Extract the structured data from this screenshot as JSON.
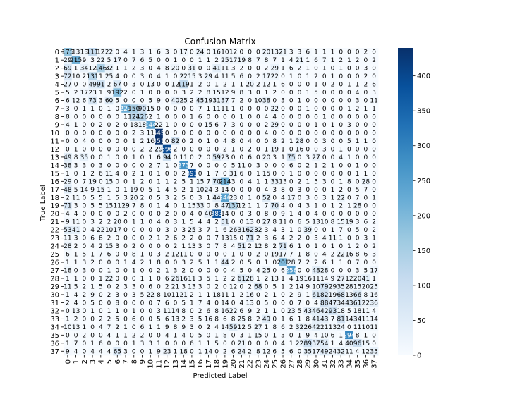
{
  "chart_data": {
    "type": "heatmap",
    "title": "Confusion Matrix",
    "xlabel": "Predicted Label",
    "ylabel": "True Label",
    "x_categories": [
      "0",
      "1",
      "2",
      "3",
      "4",
      "5",
      "6",
      "7",
      "8",
      "9",
      "10",
      "11",
      "12",
      "13",
      "14",
      "15",
      "16",
      "17",
      "18",
      "19",
      "20",
      "21",
      "22",
      "23",
      "24",
      "25",
      "26",
      "27",
      "28",
      "29",
      "30",
      "31",
      "32",
      "33",
      "34",
      "35",
      "36",
      "37"
    ],
    "y_categories": [
      "0",
      "1",
      "2",
      "3",
      "4",
      "5",
      "6",
      "7",
      "8",
      "9",
      "10",
      "11",
      "12",
      "13",
      "14",
      "15",
      "16",
      "17",
      "18",
      "19",
      "20",
      "21",
      "22",
      "23",
      "24",
      "25",
      "26",
      "27",
      "28",
      "29",
      "30",
      "31",
      "32",
      "33",
      "34",
      "35",
      "36",
      "37"
    ],
    "colormap": "Blues",
    "colorbar": {
      "min": 0,
      "max": 440,
      "ticks": [
        0,
        50,
        100,
        150,
        200,
        250,
        300,
        350,
        400
      ]
    },
    "values": [
      [
        175,
        13,
        13,
        111,
        12,
        22,
        0,
        4,
        1,
        3,
        1,
        6,
        3,
        0,
        17,
        0,
        24,
        0,
        16,
        10,
        12,
        0,
        0,
        0,
        20,
        13,
        21,
        3,
        3,
        6,
        1,
        1,
        1,
        0,
        0,
        0,
        2,
        0
      ],
      [
        29,
        215,
        9,
        3,
        22,
        5,
        17,
        0,
        7,
        6,
        5,
        0,
        0,
        1,
        0,
        0,
        1,
        1,
        2,
        25,
        17,
        19,
        8,
        7,
        8,
        7,
        1,
        4,
        21,
        1,
        6,
        7,
        1,
        2,
        1,
        2,
        0,
        2
      ],
      [
        69,
        1,
        34,
        12,
        146,
        32,
        1,
        1,
        2,
        3,
        0,
        4,
        8,
        20,
        0,
        31,
        0,
        0,
        41,
        11,
        3,
        2,
        0,
        0,
        2,
        29,
        1,
        6,
        2,
        1,
        0,
        1,
        0,
        1,
        0,
        0,
        3,
        0
      ],
      [
        72,
        10,
        2,
        131,
        1,
        25,
        4,
        0,
        0,
        3,
        0,
        4,
        1,
        0,
        22,
        15,
        3,
        29,
        4,
        11,
        5,
        6,
        0,
        2,
        17,
        22,
        0,
        1,
        0,
        1,
        2,
        0,
        1,
        0,
        0,
        0,
        2,
        0
      ],
      [
        27,
        0,
        0,
        49,
        91,
        2,
        67,
        0,
        3,
        0,
        13,
        0,
        0,
        12,
        119,
        1,
        2,
        0,
        1,
        2,
        1,
        1,
        20,
        2,
        12,
        1,
        6,
        0,
        0,
        0,
        1,
        0,
        2,
        0,
        1,
        1,
        2,
        6
      ],
      [
        5,
        2,
        17,
        23,
        1,
        9,
        192,
        2,
        0,
        1,
        0,
        0,
        0,
        0,
        3,
        2,
        2,
        8,
        15,
        12,
        9,
        8,
        3,
        0,
        1,
        2,
        0,
        0,
        0,
        1,
        5,
        0,
        0,
        0,
        0,
        4,
        0,
        3
      ],
      [
        6,
        12,
        6,
        73,
        3,
        60,
        5,
        0,
        0,
        0,
        5,
        9,
        0,
        40,
        25,
        2,
        45,
        19,
        31,
        37,
        7,
        2,
        0,
        10,
        38,
        0,
        3,
        0,
        1,
        0,
        0,
        0,
        0,
        0,
        0,
        3,
        0,
        11
      ],
      [
        3,
        0,
        1,
        1,
        0,
        1,
        0,
        222,
        150,
        90,
        15,
        0,
        0,
        0,
        0,
        0,
        7,
        1,
        11,
        11,
        1,
        0,
        0,
        0,
        0,
        22,
        0,
        0,
        0,
        1,
        0,
        0,
        0,
        0,
        1,
        2,
        1,
        1
      ],
      [
        8,
        0,
        0,
        0,
        0,
        0,
        0,
        1,
        124,
        126,
        2,
        1,
        0,
        0,
        0,
        1,
        6,
        0,
        0,
        0,
        0,
        1,
        0,
        0,
        4,
        4,
        0,
        0,
        0,
        0,
        0,
        1,
        0,
        0,
        0,
        0,
        0,
        0
      ],
      [
        4,
        1,
        0,
        0,
        2,
        0,
        2,
        0,
        18,
        18,
        244,
        22,
        1,
        0,
        0,
        0,
        0,
        15,
        6,
        7,
        3,
        0,
        0,
        0,
        2,
        29,
        0,
        0,
        0,
        0,
        1,
        0,
        1,
        0,
        3,
        0,
        0,
        0
      ],
      [
        0,
        0,
        0,
        0,
        0,
        0,
        0,
        0,
        2,
        3,
        11,
        445,
        0,
        0,
        0,
        0,
        0,
        0,
        0,
        0,
        0,
        0,
        0,
        0,
        4,
        0,
        0,
        0,
        0,
        0,
        0,
        0,
        0,
        0,
        0,
        0,
        0,
        0
      ],
      [
        0,
        0,
        4,
        0,
        0,
        0,
        0,
        0,
        1,
        2,
        16,
        451,
        0,
        82,
        0,
        2,
        0,
        1,
        0,
        4,
        8,
        0,
        4,
        0,
        0,
        8,
        2,
        1,
        28,
        0,
        0,
        3,
        0,
        0,
        5,
        1,
        1,
        0
      ],
      [
        0,
        1,
        0,
        0,
        0,
        0,
        0,
        0,
        0,
        2,
        2,
        29,
        396,
        2,
        0,
        0,
        0,
        0,
        0,
        2,
        1,
        0,
        2,
        0,
        1,
        19,
        1,
        0,
        16,
        0,
        0,
        3,
        0,
        1,
        0,
        0,
        0,
        0
      ],
      [
        49,
        8,
        35,
        0,
        0,
        1,
        0,
        0,
        1,
        0,
        1,
        6,
        94,
        0,
        11,
        0,
        2,
        0,
        59,
        23,
        0,
        0,
        6,
        0,
        20,
        3,
        1,
        75,
        0,
        3,
        27,
        0,
        0,
        4,
        1,
        0,
        0,
        0
      ],
      [
        38,
        3,
        3,
        0,
        3,
        0,
        0,
        0,
        0,
        0,
        2,
        7,
        1,
        0,
        273,
        7,
        0,
        0,
        0,
        0,
        5,
        11,
        0,
        3,
        0,
        0,
        0,
        6,
        0,
        2,
        1,
        2,
        1,
        0,
        0,
        1,
        0,
        0
      ],
      [
        1,
        0,
        1,
        2,
        6,
        11,
        4,
        0,
        2,
        1,
        0,
        1,
        0,
        0,
        2,
        393,
        0,
        1,
        7,
        0,
        31,
        6,
        0,
        1,
        15,
        0,
        0,
        1,
        0,
        0,
        0,
        0,
        0,
        0,
        0,
        1,
        1,
        0
      ],
      [
        29,
        0,
        7,
        19,
        0,
        15,
        0,
        0,
        1,
        2,
        0,
        1,
        1,
        2,
        5,
        1,
        15,
        7,
        70,
        214,
        3,
        0,
        4,
        1,
        1,
        33,
        13,
        0,
        2,
        1,
        5,
        3,
        0,
        1,
        8,
        0,
        28,
        0
      ],
      [
        48,
        5,
        14,
        9,
        15,
        1,
        0,
        1,
        19,
        0,
        5,
        1,
        4,
        5,
        2,
        1,
        10,
        24,
        3,
        14,
        0,
        0,
        0,
        0,
        4,
        3,
        8,
        0,
        3,
        0,
        0,
        0,
        1,
        2,
        0,
        5,
        7,
        0
      ],
      [
        2,
        11,
        0,
        5,
        5,
        1,
        5,
        3,
        20,
        2,
        0,
        5,
        3,
        2,
        5,
        0,
        3,
        1,
        44,
        246,
        23,
        0,
        1,
        0,
        52,
        0,
        4,
        17,
        0,
        3,
        0,
        3,
        1,
        22,
        0,
        7,
        0,
        1
      ],
      [
        71,
        3,
        0,
        5,
        5,
        15,
        11,
        29,
        7,
        8,
        0,
        1,
        4,
        0,
        1,
        15,
        33,
        0,
        8,
        47,
        137,
        12,
        1,
        1,
        7,
        70,
        4,
        0,
        4,
        3,
        1,
        0,
        1,
        2,
        1,
        28,
        0,
        0
      ],
      [
        4,
        4,
        0,
        0,
        0,
        0,
        0,
        2,
        0,
        0,
        0,
        0,
        2,
        0,
        0,
        4,
        0,
        40,
        383,
        14,
        0,
        0,
        3,
        0,
        8,
        0,
        9,
        1,
        4,
        0,
        4,
        0,
        0,
        0,
        0,
        0,
        0,
        0
      ],
      [
        9,
        11,
        0,
        3,
        2,
        2,
        20,
        0,
        1,
        1,
        0,
        4,
        0,
        3,
        1,
        5,
        4,
        4,
        2,
        51,
        0,
        0,
        13,
        0,
        27,
        8,
        11,
        0,
        6,
        5,
        13,
        10,
        8,
        15,
        19,
        3,
        6,
        2
      ],
      [
        53,
        41,
        0,
        4,
        22,
        10,
        17,
        0,
        0,
        0,
        0,
        0,
        3,
        0,
        3,
        25,
        3,
        7,
        1,
        6,
        26,
        31,
        62,
        32,
        3,
        4,
        3,
        1,
        0,
        39,
        0,
        0,
        1,
        7,
        0,
        5,
        0,
        2
      ],
      [
        11,
        3,
        0,
        6,
        8,
        2,
        0,
        0,
        0,
        0,
        2,
        1,
        2,
        6,
        2,
        2,
        0,
        0,
        7,
        13,
        15,
        0,
        71,
        2,
        3,
        6,
        4,
        2,
        2,
        0,
        3,
        4,
        11,
        1,
        0,
        0,
        3,
        1
      ],
      [
        28,
        2,
        0,
        4,
        2,
        15,
        3,
        0,
        2,
        0,
        0,
        0,
        0,
        2,
        1,
        13,
        3,
        0,
        7,
        8,
        4,
        51,
        2,
        12,
        8,
        2,
        71,
        6,
        1,
        0,
        1,
        0,
        1,
        0,
        1,
        2,
        0,
        2
      ],
      [
        6,
        1,
        5,
        1,
        7,
        6,
        0,
        0,
        8,
        1,
        0,
        3,
        2,
        12,
        11,
        0,
        0,
        0,
        0,
        0,
        1,
        0,
        0,
        2,
        0,
        19,
        17,
        7,
        1,
        8,
        0,
        4,
        2,
        22,
        16,
        8,
        6,
        3
      ],
      [
        1,
        1,
        3,
        2,
        0,
        0,
        0,
        1,
        4,
        2,
        1,
        8,
        0,
        0,
        3,
        2,
        5,
        1,
        1,
        44,
        2,
        0,
        5,
        0,
        1,
        0,
        201,
        28,
        7,
        2,
        2,
        6,
        1,
        1,
        0,
        7,
        0,
        0
      ],
      [
        18,
        0,
        3,
        0,
        0,
        1,
        0,
        0,
        1,
        0,
        0,
        2,
        1,
        3,
        2,
        0,
        0,
        0,
        0,
        0,
        4,
        5,
        0,
        4,
        25,
        0,
        6,
        256,
        0,
        0,
        48,
        28,
        0,
        0,
        0,
        3,
        5,
        17
      ],
      [
        1,
        1,
        0,
        0,
        1,
        22,
        0,
        0,
        0,
        1,
        1,
        0,
        6,
        26,
        16,
        11,
        3,
        5,
        1,
        2,
        2,
        61,
        28,
        1,
        2,
        13,
        1,
        4,
        19,
        16,
        11,
        14,
        9,
        27,
        12,
        20,
        41,
        1
      ],
      [
        11,
        5,
        2,
        1,
        5,
        0,
        2,
        3,
        3,
        0,
        6,
        0,
        2,
        21,
        3,
        13,
        3,
        0,
        2,
        0,
        12,
        0,
        2,
        68,
        0,
        5,
        1,
        2,
        14,
        9,
        10,
        79,
        29,
        35,
        28,
        15,
        20,
        25
      ],
      [
        1,
        4,
        2,
        9,
        0,
        2,
        3,
        0,
        3,
        5,
        22,
        8,
        10,
        11,
        21,
        2,
        1,
        1,
        18,
        11,
        1,
        2,
        16,
        0,
        2,
        1,
        0,
        2,
        9,
        1,
        61,
        82,
        19,
        68,
        13,
        66,
        8,
        16
      ],
      [
        2,
        4,
        0,
        5,
        0,
        0,
        8,
        0,
        0,
        0,
        0,
        7,
        6,
        0,
        5,
        1,
        7,
        4,
        0,
        14,
        0,
        4,
        13,
        0,
        5,
        0,
        0,
        0,
        7,
        0,
        4,
        88,
        47,
        34,
        43,
        61,
        22,
        36
      ],
      [
        0,
        13,
        0,
        1,
        0,
        1,
        1,
        0,
        1,
        0,
        0,
        3,
        11,
        14,
        8,
        0,
        2,
        6,
        8,
        16,
        22,
        6,
        9,
        2,
        1,
        1,
        0,
        23,
        5,
        43,
        46,
        42,
        93,
        18,
        5,
        18,
        11,
        4
      ],
      [
        1,
        2,
        0,
        0,
        2,
        2,
        5,
        0,
        6,
        0,
        0,
        5,
        6,
        13,
        2,
        3,
        5,
        16,
        8,
        6,
        8,
        25,
        8,
        2,
        49,
        0,
        1,
        6,
        1,
        8,
        41,
        43,
        7,
        81,
        14,
        34,
        11,
        14
      ],
      [
        10,
        13,
        1,
        0,
        4,
        7,
        2,
        1,
        0,
        6,
        1,
        1,
        9,
        8,
        9,
        3,
        0,
        2,
        4,
        14,
        59,
        12,
        5,
        27,
        1,
        8,
        6,
        2,
        32,
        26,
        42,
        21,
        13,
        24,
        0,
        11,
        10,
        11
      ],
      [
        0,
        0,
        2,
        0,
        0,
        4,
        1,
        1,
        2,
        2,
        0,
        0,
        4,
        1,
        4,
        0,
        5,
        0,
        1,
        8,
        0,
        3,
        1,
        15,
        0,
        1,
        3,
        0,
        1,
        9,
        4,
        10,
        6,
        1,
        294,
        8,
        1,
        0
      ],
      [
        1,
        7,
        0,
        1,
        6,
        0,
        0,
        0,
        1,
        3,
        3,
        1,
        0,
        0,
        0,
        6,
        1,
        1,
        5,
        0,
        0,
        21,
        0,
        0,
        0,
        0,
        4,
        1,
        22,
        89,
        37,
        54,
        1,
        4,
        40,
        96,
        15,
        0
      ],
      [
        9,
        4,
        0,
        4,
        4,
        4,
        65,
        3,
        0,
        0,
        1,
        9,
        23,
        1,
        18,
        0,
        1,
        14,
        0,
        2,
        6,
        24,
        2,
        8,
        12,
        6,
        5,
        6,
        0,
        35,
        17,
        49,
        24,
        32,
        11,
        4,
        12,
        35
      ]
    ]
  }
}
